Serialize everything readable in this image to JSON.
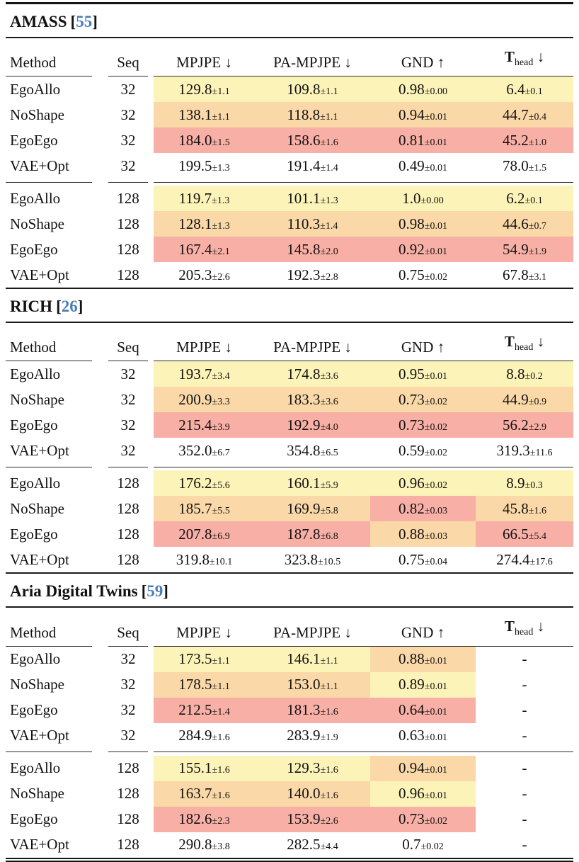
{
  "colors": {
    "cite_blue": "#4a7db8",
    "highlight_best": "#fcf3b8",
    "highlight_second": "#fad8a8",
    "highlight_third": "#f8afa6",
    "rule_black": "#151515"
  },
  "symbols": {
    "bracket_open": "[",
    "bracket_close": "]"
  },
  "columns": {
    "method": "Method",
    "seq": "Seq",
    "mpjpe": "MPJPE ↓",
    "pa_mpjpe": "PA-MPJPE ↓",
    "gnd": "GND ↑",
    "t_head": {
      "t": "T",
      "sub": "head",
      "arrow": " ↓"
    }
  },
  "sections": [
    {
      "title": "AMASS",
      "cite": "55",
      "blocks": [
        {
          "rows": [
            {
              "method": "EgoAllo",
              "seq": "32",
              "cells": [
                {
                  "v": "129.8",
                  "e": "±1.1",
                  "hl": "y"
                },
                {
                  "v": "109.8",
                  "e": "±1.1",
                  "hl": "y"
                },
                {
                  "v": "0.98",
                  "e": "±0.00",
                  "hl": "y"
                },
                {
                  "v": "6.4",
                  "e": "±0.1",
                  "hl": "y"
                }
              ]
            },
            {
              "method": "NoShape",
              "seq": "32",
              "cells": [
                {
                  "v": "138.1",
                  "e": "±1.1",
                  "hl": "o"
                },
                {
                  "v": "118.8",
                  "e": "±1.1",
                  "hl": "o"
                },
                {
                  "v": "0.94",
                  "e": "±0.01",
                  "hl": "o"
                },
                {
                  "v": "44.7",
                  "e": "±0.4",
                  "hl": "o"
                }
              ]
            },
            {
              "method": "EgoEgo",
              "seq": "32",
              "cells": [
                {
                  "v": "184.0",
                  "e": "±1.5",
                  "hl": "r"
                },
                {
                  "v": "158.6",
                  "e": "±1.6",
                  "hl": "r"
                },
                {
                  "v": "0.81",
                  "e": "±0.01",
                  "hl": "r"
                },
                {
                  "v": "45.2",
                  "e": "±1.0",
                  "hl": "r"
                }
              ]
            },
            {
              "method": "VAE+Opt",
              "seq": "32",
              "cells": [
                {
                  "v": "199.5",
                  "e": "±1.3",
                  "hl": ""
                },
                {
                  "v": "191.4",
                  "e": "±1.4",
                  "hl": ""
                },
                {
                  "v": "0.49",
                  "e": "±0.01",
                  "hl": ""
                },
                {
                  "v": "78.0",
                  "e": "±1.5",
                  "hl": ""
                }
              ]
            }
          ]
        },
        {
          "rows": [
            {
              "method": "EgoAllo",
              "seq": "128",
              "cells": [
                {
                  "v": "119.7",
                  "e": "±1.3",
                  "hl": "y"
                },
                {
                  "v": "101.1",
                  "e": "±1.3",
                  "hl": "y"
                },
                {
                  "v": "1.0",
                  "e": "±0.00",
                  "hl": "y"
                },
                {
                  "v": "6.2",
                  "e": "±0.1",
                  "hl": "y"
                }
              ]
            },
            {
              "method": "NoShape",
              "seq": "128",
              "cells": [
                {
                  "v": "128.1",
                  "e": "±1.3",
                  "hl": "o"
                },
                {
                  "v": "110.3",
                  "e": "±1.4",
                  "hl": "o"
                },
                {
                  "v": "0.98",
                  "e": "±0.01",
                  "hl": "o"
                },
                {
                  "v": "44.6",
                  "e": "±0.7",
                  "hl": "o"
                }
              ]
            },
            {
              "method": "EgoEgo",
              "seq": "128",
              "cells": [
                {
                  "v": "167.4",
                  "e": "±2.1",
                  "hl": "r"
                },
                {
                  "v": "145.8",
                  "e": "±2.0",
                  "hl": "r"
                },
                {
                  "v": "0.92",
                  "e": "±0.01",
                  "hl": "r"
                },
                {
                  "v": "54.9",
                  "e": "±1.9",
                  "hl": "r"
                }
              ]
            },
            {
              "method": "VAE+Opt",
              "seq": "128",
              "cells": [
                {
                  "v": "205.3",
                  "e": "±2.6",
                  "hl": ""
                },
                {
                  "v": "192.3",
                  "e": "±2.8",
                  "hl": ""
                },
                {
                  "v": "0.75",
                  "e": "±0.02",
                  "hl": ""
                },
                {
                  "v": "67.8",
                  "e": "±3.1",
                  "hl": ""
                }
              ]
            }
          ]
        }
      ]
    },
    {
      "title": "RICH",
      "cite": "26",
      "blocks": [
        {
          "rows": [
            {
              "method": "EgoAllo",
              "seq": "32",
              "cells": [
                {
                  "v": "193.7",
                  "e": "±3.4",
                  "hl": "y"
                },
                {
                  "v": "174.8",
                  "e": "±3.6",
                  "hl": "y"
                },
                {
                  "v": "0.95",
                  "e": "±0.01",
                  "hl": "y"
                },
                {
                  "v": "8.8",
                  "e": "±0.2",
                  "hl": "y"
                }
              ]
            },
            {
              "method": "NoShape",
              "seq": "32",
              "cells": [
                {
                  "v": "200.9",
                  "e": "±3.3",
                  "hl": "o"
                },
                {
                  "v": "183.3",
                  "e": "±3.6",
                  "hl": "o"
                },
                {
                  "v": "0.73",
                  "e": "±0.02",
                  "hl": "o"
                },
                {
                  "v": "44.9",
                  "e": "±0.9",
                  "hl": "o"
                }
              ]
            },
            {
              "method": "EgoEgo",
              "seq": "32",
              "cells": [
                {
                  "v": "215.4",
                  "e": "±3.9",
                  "hl": "r"
                },
                {
                  "v": "192.9",
                  "e": "±4.0",
                  "hl": "r"
                },
                {
                  "v": "0.73",
                  "e": "±0.02",
                  "hl": "r"
                },
                {
                  "v": "56.2",
                  "e": "±2.9",
                  "hl": "r"
                }
              ]
            },
            {
              "method": "VAE+Opt",
              "seq": "32",
              "cells": [
                {
                  "v": "352.0",
                  "e": "±6.7",
                  "hl": ""
                },
                {
                  "v": "354.8",
                  "e": "±6.5",
                  "hl": ""
                },
                {
                  "v": "0.59",
                  "e": "±0.02",
                  "hl": ""
                },
                {
                  "v": "319.3",
                  "e": "±11.6",
                  "hl": ""
                }
              ]
            }
          ]
        },
        {
          "rows": [
            {
              "method": "EgoAllo",
              "seq": "128",
              "cells": [
                {
                  "v": "176.2",
                  "e": "±5.6",
                  "hl": "y"
                },
                {
                  "v": "160.1",
                  "e": "±5.9",
                  "hl": "y"
                },
                {
                  "v": "0.96",
                  "e": "±0.02",
                  "hl": "y"
                },
                {
                  "v": "8.9",
                  "e": "±0.3",
                  "hl": "y"
                }
              ]
            },
            {
              "method": "NoShape",
              "seq": "128",
              "cells": [
                {
                  "v": "185.7",
                  "e": "±5.5",
                  "hl": "o"
                },
                {
                  "v": "169.9",
                  "e": "±5.8",
                  "hl": "o"
                },
                {
                  "v": "0.82",
                  "e": "±0.03",
                  "hl": "r"
                },
                {
                  "v": "45.8",
                  "e": "±1.6",
                  "hl": "o"
                }
              ]
            },
            {
              "method": "EgoEgo",
              "seq": "128",
              "cells": [
                {
                  "v": "207.8",
                  "e": "±6.9",
                  "hl": "r"
                },
                {
                  "v": "187.8",
                  "e": "±6.8",
                  "hl": "r"
                },
                {
                  "v": "0.88",
                  "e": "±0.03",
                  "hl": "o"
                },
                {
                  "v": "66.5",
                  "e": "±5.4",
                  "hl": "r"
                }
              ]
            },
            {
              "method": "VAE+Opt",
              "seq": "128",
              "cells": [
                {
                  "v": "319.8",
                  "e": "±10.1",
                  "hl": ""
                },
                {
                  "v": "323.8",
                  "e": "±10.5",
                  "hl": ""
                },
                {
                  "v": "0.75",
                  "e": "±0.04",
                  "hl": ""
                },
                {
                  "v": "274.4",
                  "e": "±17.6",
                  "hl": ""
                }
              ]
            }
          ]
        }
      ]
    },
    {
      "title": "Aria Digital Twins",
      "cite": "59",
      "blocks": [
        {
          "rows": [
            {
              "method": "EgoAllo",
              "seq": "32",
              "cells": [
                {
                  "v": "173.5",
                  "e": "±1.1",
                  "hl": "y"
                },
                {
                  "v": "146.1",
                  "e": "±1.1",
                  "hl": "y"
                },
                {
                  "v": "0.88",
                  "e": "±0.01",
                  "hl": "o"
                },
                {
                  "v": "-",
                  "e": "",
                  "hl": ""
                }
              ]
            },
            {
              "method": "NoShape",
              "seq": "32",
              "cells": [
                {
                  "v": "178.5",
                  "e": "±1.1",
                  "hl": "o"
                },
                {
                  "v": "153.0",
                  "e": "±1.1",
                  "hl": "o"
                },
                {
                  "v": "0.89",
                  "e": "±0.01",
                  "hl": "y"
                },
                {
                  "v": "-",
                  "e": "",
                  "hl": ""
                }
              ]
            },
            {
              "method": "EgoEgo",
              "seq": "32",
              "cells": [
                {
                  "v": "212.5",
                  "e": "±1.4",
                  "hl": "r"
                },
                {
                  "v": "181.3",
                  "e": "±1.6",
                  "hl": "r"
                },
                {
                  "v": "0.64",
                  "e": "±0.01",
                  "hl": "r"
                },
                {
                  "v": "-",
                  "e": "",
                  "hl": ""
                }
              ]
            },
            {
              "method": "VAE+Opt",
              "seq": "32",
              "cells": [
                {
                  "v": "284.9",
                  "e": "±1.6",
                  "hl": ""
                },
                {
                  "v": "283.9",
                  "e": "±1.9",
                  "hl": ""
                },
                {
                  "v": "0.63",
                  "e": "±0.01",
                  "hl": ""
                },
                {
                  "v": "-",
                  "e": "",
                  "hl": ""
                }
              ]
            }
          ]
        },
        {
          "rows": [
            {
              "method": "EgoAllo",
              "seq": "128",
              "cells": [
                {
                  "v": "155.1",
                  "e": "±1.6",
                  "hl": "y"
                },
                {
                  "v": "129.3",
                  "e": "±1.6",
                  "hl": "y"
                },
                {
                  "v": "0.94",
                  "e": "±0.01",
                  "hl": "o"
                },
                {
                  "v": "-",
                  "e": "",
                  "hl": ""
                }
              ]
            },
            {
              "method": "NoShape",
              "seq": "128",
              "cells": [
                {
                  "v": "163.7",
                  "e": "±1.6",
                  "hl": "o"
                },
                {
                  "v": "140.0",
                  "e": "±1.6",
                  "hl": "o"
                },
                {
                  "v": "0.96",
                  "e": "±0.01",
                  "hl": "y"
                },
                {
                  "v": "-",
                  "e": "",
                  "hl": ""
                }
              ]
            },
            {
              "method": "EgoEgo",
              "seq": "128",
              "cells": [
                {
                  "v": "182.6",
                  "e": "±2.3",
                  "hl": "r"
                },
                {
                  "v": "153.9",
                  "e": "±2.6",
                  "hl": "r"
                },
                {
                  "v": "0.73",
                  "e": "±0.02",
                  "hl": "r"
                },
                {
                  "v": "-",
                  "e": "",
                  "hl": ""
                }
              ]
            },
            {
              "method": "VAE+Opt",
              "seq": "128",
              "cells": [
                {
                  "v": "290.8",
                  "e": "±3.8",
                  "hl": ""
                },
                {
                  "v": "282.5",
                  "e": "±4.4",
                  "hl": ""
                },
                {
                  "v": "0.7",
                  "e": "±0.02",
                  "hl": ""
                },
                {
                  "v": "-",
                  "e": "",
                  "hl": ""
                }
              ]
            }
          ]
        }
      ]
    }
  ]
}
